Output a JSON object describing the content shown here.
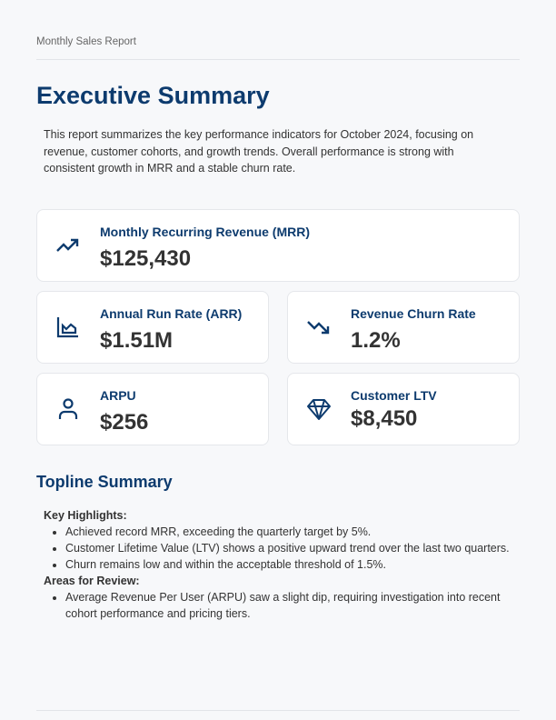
{
  "header": "Monthly Sales Report",
  "title": "Executive Summary",
  "intro": "This report summarizes the key performance indicators for October 2024, focusing on revenue, customer cohorts, and growth trends. Overall performance is strong with consistent growth in MRR and a stable churn rate.",
  "kpis": [
    {
      "label": "Monthly Recurring Revenue (MRR)",
      "value": "$125,430",
      "icon": "trending-up-icon"
    },
    {
      "label": "Annual Run Rate (ARR)",
      "value": "$1.51M",
      "icon": "area-chart-icon"
    },
    {
      "label": "Revenue Churn Rate",
      "value": "1.2%",
      "icon": "trending-down-icon"
    },
    {
      "label": "ARPU",
      "value": "$256",
      "icon": "user-icon"
    },
    {
      "label": "Customer LTV",
      "value": "$8,450",
      "icon": "diamond-icon"
    }
  ],
  "topline": {
    "title": "Topline Summary",
    "highlights_title": "Key Highlights:",
    "highlights": [
      "Achieved record MRR, exceeding the quarterly target by 5%.",
      "Customer Lifetime Value (LTV) shows a positive upward trend over the last two quarters.",
      "Churn remains low and within the acceptable threshold of 1.5%."
    ],
    "review_title": "Areas for Review:",
    "review": [
      "Average Revenue Per User (ARPU) saw a slight dip, requiring investigation into recent cohort performance and pricing tiers."
    ]
  }
}
